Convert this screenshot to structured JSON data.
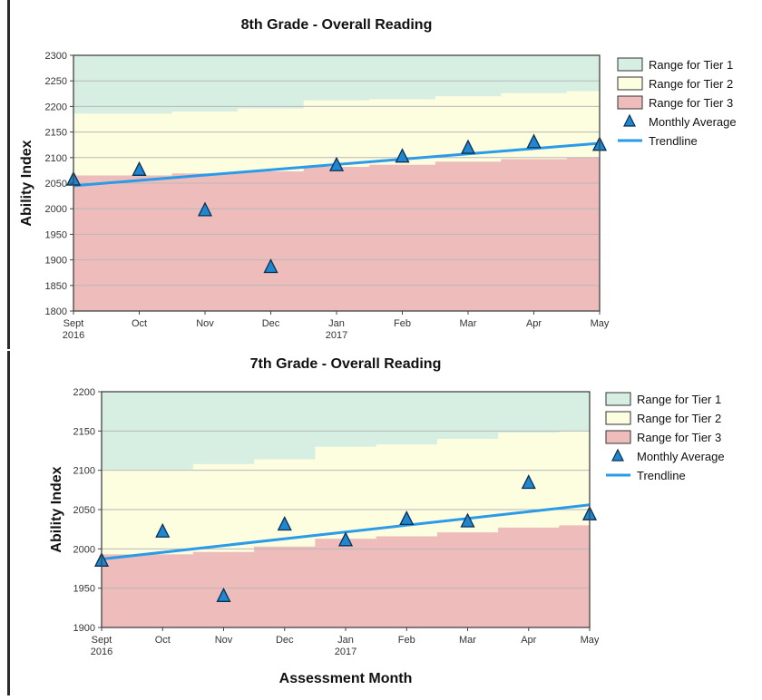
{
  "charts": [
    {
      "title": "8th Grade - Overall Reading",
      "ylabel": "Ability Index",
      "xlabel": "",
      "ylim": [
        1800,
        2300
      ],
      "yticks": [
        1800,
        1850,
        1900,
        1950,
        2000,
        2050,
        2100,
        2150,
        2200,
        2250,
        2300
      ],
      "categories": [
        "Sept",
        "Oct",
        "Nov",
        "Dec",
        "Jan",
        "Feb",
        "Mar",
        "Apr",
        "May"
      ],
      "sublabels": [
        "2016",
        "",
        "",
        "",
        "2017",
        "",
        "",
        "",
        ""
      ],
      "legend": [
        "Range for Tier 1",
        "Range for Tier 2",
        "Range for Tier 3",
        "Monthly Average",
        "Trendline"
      ]
    },
    {
      "title": "7th Grade - Overall Reading",
      "ylabel": "Ability Index",
      "xlabel": "Assessment Month",
      "ylim": [
        1900,
        2200
      ],
      "yticks": [
        1900,
        1950,
        2000,
        2050,
        2100,
        2150,
        2200
      ],
      "categories": [
        "Sept",
        "Oct",
        "Nov",
        "Dec",
        "Jan",
        "Feb",
        "Mar",
        "Apr",
        "May"
      ],
      "sublabels": [
        "2016",
        "",
        "",
        "",
        "2017",
        "",
        "",
        "",
        ""
      ],
      "legend": [
        "Range for Tier 1",
        "Range for Tier 2",
        "Range for Tier 3",
        "Monthly Average",
        "Trendline"
      ]
    }
  ],
  "colors": {
    "tier1": "#d6efe2",
    "tier2": "#fdfde0",
    "tier3": "#efbcbc",
    "marker": "#1f86d0",
    "marker_stroke": "#0b2f52",
    "trend": "#2a9be6",
    "grid": "#b8b8b8",
    "axis": "#444444"
  },
  "chart_data": [
    {
      "type": "area",
      "title": "8th Grade - Overall Reading",
      "ylabel": "Ability Index",
      "ylim": [
        1800,
        2300
      ],
      "grid": true,
      "legend_position": "right",
      "categories": [
        "Sept",
        "Oct",
        "Nov",
        "Dec",
        "Jan",
        "Feb",
        "Mar",
        "Apr",
        "May"
      ],
      "tier3_upper": [
        2065,
        2065,
        2069,
        2073,
        2082,
        2086,
        2092,
        2097,
        2100
      ],
      "tier2_upper": [
        2186,
        2186,
        2190,
        2196,
        2212,
        2214,
        2220,
        2226,
        2230
      ],
      "series": [
        {
          "name": "Monthly Average",
          "type": "scatter",
          "values": [
            2057,
            2076,
            1997,
            1886,
            2085,
            2102,
            2119,
            2130,
            2125
          ]
        },
        {
          "name": "Trendline",
          "type": "line",
          "values": [
            2045,
            2055,
            2065,
            2075,
            2086,
            2096,
            2106,
            2117,
            2128
          ]
        }
      ]
    },
    {
      "type": "area",
      "title": "7th Grade - Overall Reading",
      "ylabel": "Ability Index",
      "xlabel": "Assessment Month",
      "ylim": [
        1900,
        2200
      ],
      "grid": true,
      "legend_position": "right",
      "categories": [
        "Sept",
        "Oct",
        "Nov",
        "Dec",
        "Jan",
        "Feb",
        "Mar",
        "Apr",
        "May"
      ],
      "tier3_upper": [
        1993,
        1993,
        1996,
        2003,
        2013,
        2016,
        2021,
        2027,
        2030
      ],
      "tier2_upper": [
        2101,
        2101,
        2108,
        2114,
        2130,
        2133,
        2140,
        2148,
        2150
      ],
      "series": [
        {
          "name": "Monthly Average",
          "type": "scatter",
          "values": [
            1985,
            2022,
            1940,
            2031,
            2011,
            2038,
            2035,
            2084,
            2044
          ]
        },
        {
          "name": "Trendline",
          "type": "line",
          "values": [
            1987,
            1996,
            2004,
            2013,
            2022,
            2030,
            2039,
            2048,
            2056
          ]
        }
      ]
    }
  ]
}
